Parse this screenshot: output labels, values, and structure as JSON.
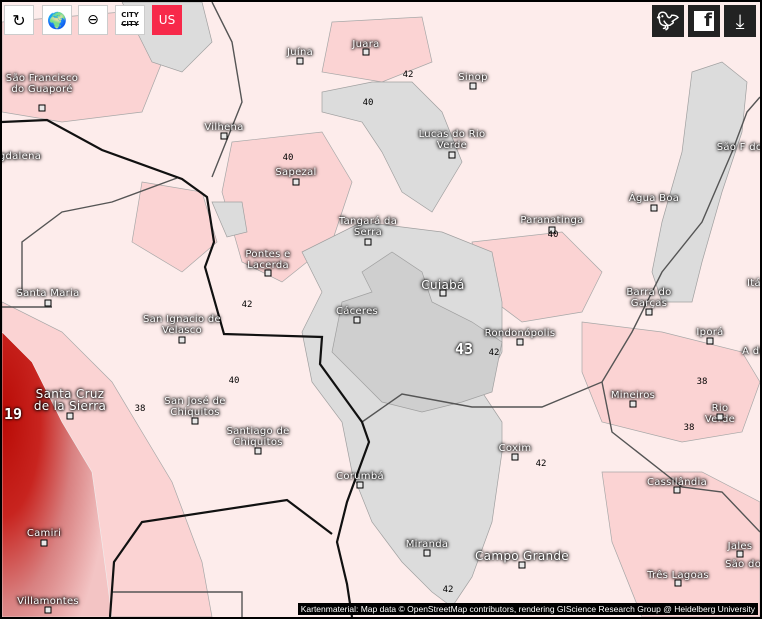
{
  "toolbar": {
    "reload_icon": "refresh-icon",
    "globe_icon": "globe-location-icon",
    "zoom_out_icon": "zoom-out-icon",
    "city_toggle_label": "CITY",
    "city_toggle_label2": "CITY",
    "units_label": "US"
  },
  "social": {
    "twitter": "twitter-icon",
    "facebook": "facebook-icon",
    "download": "download-icon"
  },
  "colors": {
    "background": "#fdeceb",
    "warm": "#fbd3d3",
    "cool_gray": "#dcdcdc",
    "hot": "#c0140e",
    "units_button": "#f7294a"
  },
  "cities": [
    "Juína",
    "Juara",
    "Sinop",
    "São Francisco do Guaporé",
    "Vilhena",
    "Lucas do Rio Verde",
    "gdalena",
    "Sapezal",
    "São F do Ar",
    "Água Boa",
    "Tangará da Serra",
    "Paranatinga",
    "Pontes e Lacerda",
    "Cuiabá",
    "Santa Maria",
    "Barra do Garças",
    "Itá",
    "Cáceres",
    "San Ignacio de Velasco",
    "Rondonópolis",
    "Iporá",
    "A de",
    "Mineiros",
    "Rio Verde",
    "Santa Cruz de la Sierra",
    "San José de Chiquitos",
    "Santiago de Chiquitos",
    "Coxim",
    "Corumbá",
    "Cassilândia",
    "Camiri",
    "Miranda",
    "Jales",
    "Campo Grande",
    "São do Ri",
    "Três Lagoas",
    "Villamontes"
  ],
  "contour_labels": [
    "42",
    "40",
    "40",
    "40",
    "42",
    "42",
    "43",
    "40",
    "38",
    "38",
    "38",
    "42",
    "42",
    "19"
  ],
  "attribution": "Kartenmaterial: Map data © OpenStreetMap contributors, rendering GIScience Research Group @ Heidelberg University"
}
